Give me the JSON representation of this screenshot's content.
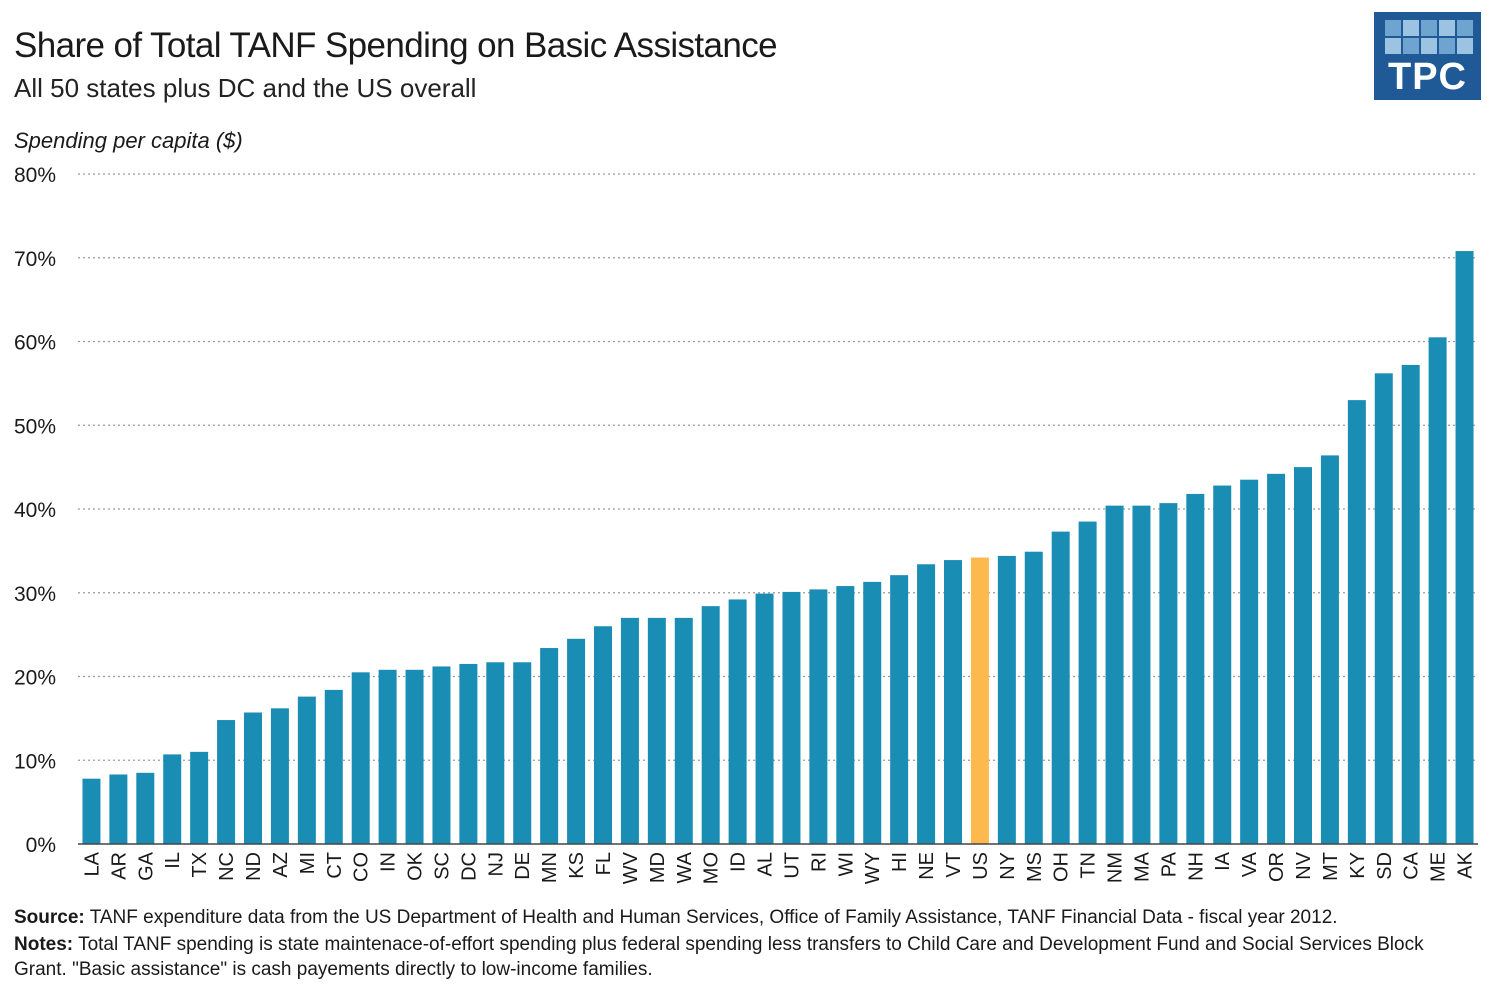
{
  "header": {
    "title": "Share of Total TANF Spending on Basic Assistance",
    "subtitle": "All 50 states plus DC and the US overall"
  },
  "logo": {
    "text": "TPC",
    "color": "#1f5a96",
    "square_colors": [
      "#6ea4cf",
      "#9cc3e2"
    ]
  },
  "footer": {
    "source_label": "Source:",
    "source_text": "TANF expenditure data from the US Department of Health and Human Services, Office of Family Assistance, TANF Financial Data - fiscal year 2012.",
    "notes_label": "Notes:",
    "notes_text": "Total TANF spending is state maintenace-of-effort spending plus federal spending less transfers to Child Care and Development Fund and Social Services Block Grant. \"Basic assistance\" is cash payements directly to low-income families."
  },
  "chart_data": {
    "type": "bar",
    "ylabel": "Spending per capita ($)",
    "ylim": [
      0,
      80
    ],
    "yticks": [
      0,
      10,
      20,
      30,
      40,
      50,
      60,
      70,
      80
    ],
    "ytick_labels": [
      "0%",
      "10%",
      "20%",
      "30%",
      "40%",
      "50%",
      "60%",
      "70%",
      "80%"
    ],
    "grid": true,
    "bar_color": "#1a8db4",
    "highlight_color": "#fdb94e",
    "highlight_category": "US",
    "categories": [
      "LA",
      "AR",
      "GA",
      "IL",
      "TX",
      "NC",
      "ND",
      "AZ",
      "MI",
      "CT",
      "CO",
      "IN",
      "OK",
      "SC",
      "DC",
      "NJ",
      "DE",
      "MN",
      "KS",
      "FL",
      "WV",
      "MD",
      "WA",
      "MO",
      "ID",
      "AL",
      "UT",
      "RI",
      "WI",
      "WY",
      "HI",
      "NE",
      "VT",
      "US",
      "NY",
      "MS",
      "OH",
      "TN",
      "NM",
      "MA",
      "PA",
      "NH",
      "IA",
      "VA",
      "OR",
      "NV",
      "MT",
      "KY",
      "SD",
      "CA",
      "ME",
      "AK"
    ],
    "values": [
      7.8,
      8.3,
      8.5,
      10.7,
      11.0,
      14.8,
      15.7,
      16.2,
      17.6,
      18.4,
      20.5,
      20.8,
      20.8,
      21.2,
      21.5,
      21.7,
      21.7,
      23.4,
      24.5,
      26.0,
      27.0,
      27.0,
      27.0,
      28.4,
      29.2,
      29.9,
      30.1,
      30.4,
      30.8,
      31.3,
      32.1,
      33.4,
      33.9,
      34.2,
      34.4,
      34.9,
      37.3,
      38.5,
      40.4,
      40.4,
      40.7,
      41.8,
      42.8,
      43.5,
      44.2,
      45.0,
      46.4,
      53.0,
      56.2,
      57.2,
      60.5,
      70.8
    ]
  }
}
